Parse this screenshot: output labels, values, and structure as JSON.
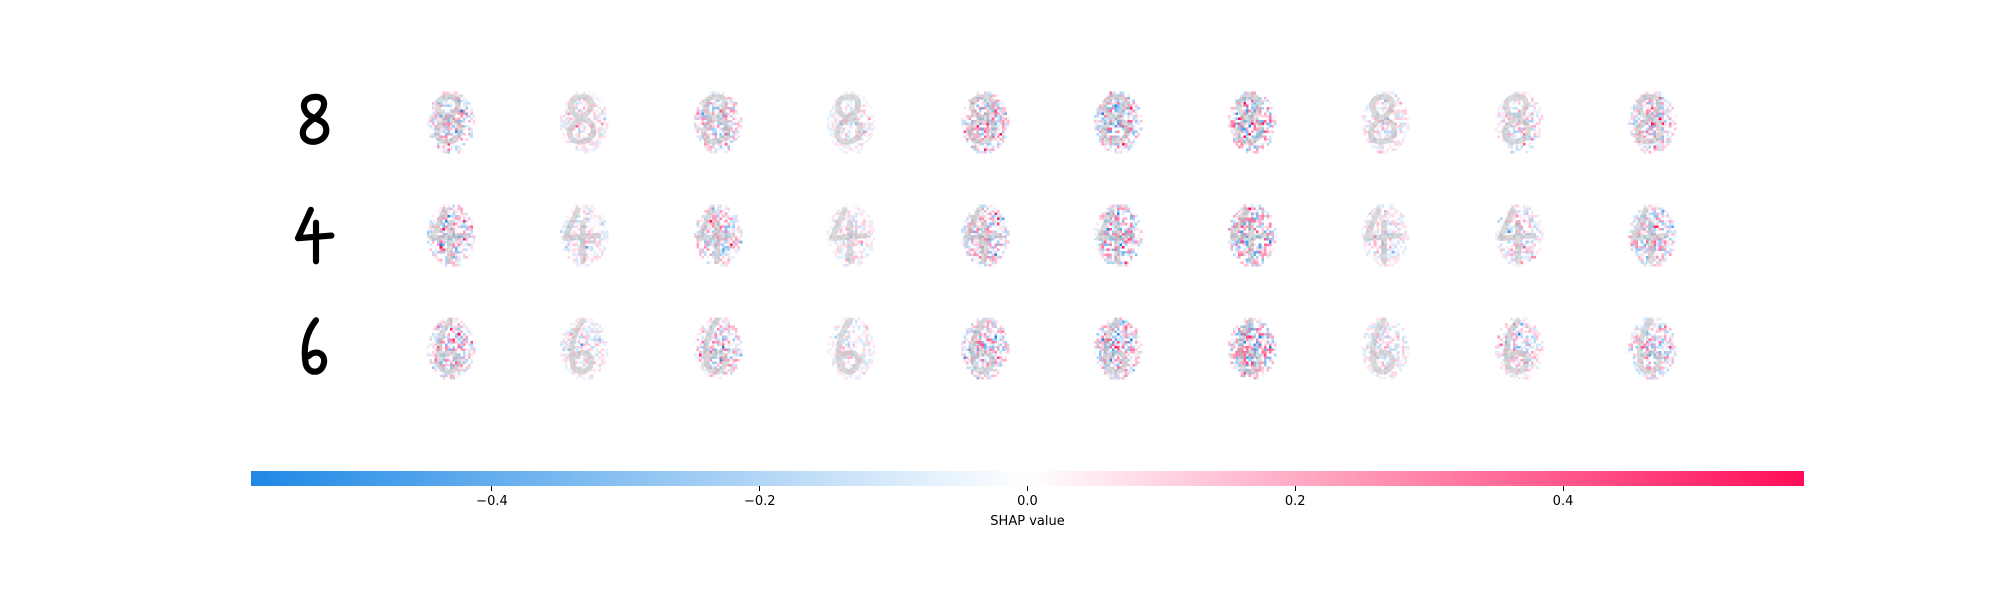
{
  "chart_data": {
    "type": "heatmap",
    "description_kind": "SHAP image explanation grid",
    "rows": [
      {
        "digit": "8",
        "input_label": "input-digit-8"
      },
      {
        "digit": "4",
        "input_label": "input-digit-4"
      },
      {
        "digit": "6",
        "input_label": "input-digit-6"
      }
    ],
    "num_explanation_columns": 10,
    "colorbar": {
      "label": "SHAP value",
      "vmin": -0.58,
      "vmax": 0.58,
      "ticks": [
        -0.4,
        -0.2,
        0.0,
        0.2,
        0.4
      ],
      "tick_labels": [
        "−0.4",
        "−0.2",
        "0.0",
        "0.2",
        "0.4"
      ],
      "color_negative": "#1E88E5",
      "color_mid": "#FFFFFF",
      "color_positive": "#FF0D57"
    },
    "column_intensity": [
      0.6,
      0.35,
      0.6,
      0.3,
      0.65,
      0.75,
      0.85,
      0.35,
      0.45,
      0.6
    ]
  },
  "colors": {
    "digit_ink": "#000000",
    "gray_overlay": "#bfbfbf",
    "background": "#ffffff"
  }
}
